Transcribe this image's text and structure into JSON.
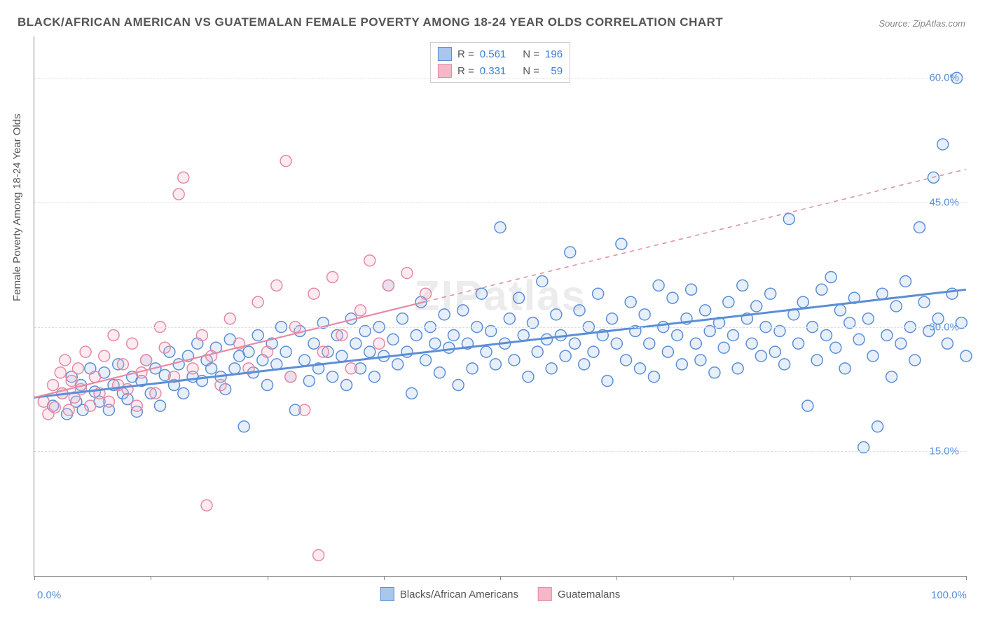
{
  "chart": {
    "title": "BLACK/AFRICAN AMERICAN VS GUATEMALAN FEMALE POVERTY AMONG 18-24 YEAR OLDS CORRELATION CHART",
    "source": "Source: ZipAtlas.com",
    "watermark": "ZIPatlas",
    "type": "scatter",
    "y_label": "Female Poverty Among 18-24 Year Olds",
    "xlim": [
      0,
      100
    ],
    "ylim": [
      0,
      65
    ],
    "y_gridlines": [
      15,
      30,
      45,
      60
    ],
    "y_tick_labels": [
      "15.0%",
      "30.0%",
      "45.0%",
      "60.0%"
    ],
    "x_ticks": [
      0,
      12.5,
      25,
      37.5,
      50,
      62.5,
      75,
      87.5,
      100
    ],
    "x_tick_labels": {
      "0": "0.0%",
      "100": "100.0%"
    },
    "background_color": "#ffffff",
    "grid_color": "#dddddd",
    "axis_color": "#888888",
    "tick_label_color": "#5b8fd6",
    "title_color": "#555555",
    "title_fontsize": 17,
    "label_fontsize": 15,
    "marker_radius": 8,
    "marker_stroke_width": 1.5,
    "marker_fill_opacity": 0.28,
    "series": [
      {
        "name": "Blacks/African Americans",
        "color_stroke": "#5b8fd6",
        "color_fill": "#a9c7ec",
        "R": "0.561",
        "N": "196",
        "trend": {
          "x1": 0,
          "y1": 21.5,
          "x2": 100,
          "y2": 34.5,
          "dash": false,
          "width": 3
        },
        "points": [
          [
            2,
            20.5
          ],
          [
            3,
            22
          ],
          [
            3.5,
            19.5
          ],
          [
            4,
            24
          ],
          [
            4.5,
            21
          ],
          [
            5,
            23
          ],
          [
            5.2,
            20
          ],
          [
            6,
            25
          ],
          [
            6.5,
            22.2
          ],
          [
            7,
            21
          ],
          [
            7.5,
            24.5
          ],
          [
            8,
            20
          ],
          [
            8.5,
            23
          ],
          [
            9,
            25.5
          ],
          [
            9.5,
            22
          ],
          [
            10,
            21.3
          ],
          [
            10.5,
            24
          ],
          [
            11,
            19.8
          ],
          [
            11.5,
            23.5
          ],
          [
            12,
            26
          ],
          [
            12.5,
            22
          ],
          [
            13,
            25
          ],
          [
            13.5,
            20.5
          ],
          [
            14,
            24.2
          ],
          [
            14.5,
            27
          ],
          [
            15,
            23
          ],
          [
            15.5,
            25.5
          ],
          [
            16,
            22
          ],
          [
            16.5,
            26.5
          ],
          [
            17,
            24
          ],
          [
            17.5,
            28
          ],
          [
            18,
            23.5
          ],
          [
            18.5,
            26
          ],
          [
            19,
            25
          ],
          [
            19.5,
            27.5
          ],
          [
            20,
            24
          ],
          [
            20.5,
            22.5
          ],
          [
            21,
            28.5
          ],
          [
            21.5,
            25
          ],
          [
            22,
            26.5
          ],
          [
            22.5,
            18
          ],
          [
            23,
            27
          ],
          [
            23.5,
            24.5
          ],
          [
            24,
            29
          ],
          [
            24.5,
            26
          ],
          [
            25,
            23
          ],
          [
            25.5,
            28
          ],
          [
            26,
            25.5
          ],
          [
            26.5,
            30
          ],
          [
            27,
            27
          ],
          [
            27.5,
            24
          ],
          [
            28,
            20
          ],
          [
            28.5,
            29.5
          ],
          [
            29,
            26
          ],
          [
            29.5,
            23.5
          ],
          [
            30,
            28
          ],
          [
            30.5,
            25
          ],
          [
            31,
            30.5
          ],
          [
            31.5,
            27
          ],
          [
            32,
            24
          ],
          [
            32.5,
            29
          ],
          [
            33,
            26.5
          ],
          [
            33.5,
            23
          ],
          [
            34,
            31
          ],
          [
            34.5,
            28
          ],
          [
            35,
            25
          ],
          [
            35.5,
            29.5
          ],
          [
            36,
            27
          ],
          [
            36.5,
            24
          ],
          [
            37,
            30
          ],
          [
            37.5,
            26.5
          ],
          [
            38,
            35
          ],
          [
            38.5,
            28.5
          ],
          [
            39,
            25.5
          ],
          [
            39.5,
            31
          ],
          [
            40,
            27
          ],
          [
            40.5,
            22
          ],
          [
            41,
            29
          ],
          [
            41.5,
            33
          ],
          [
            42,
            26
          ],
          [
            42.5,
            30
          ],
          [
            43,
            28
          ],
          [
            43.5,
            24.5
          ],
          [
            44,
            31.5
          ],
          [
            44.5,
            27.5
          ],
          [
            45,
            29
          ],
          [
            45.5,
            23
          ],
          [
            46,
            32
          ],
          [
            46.5,
            28
          ],
          [
            47,
            25
          ],
          [
            47.5,
            30
          ],
          [
            48,
            34
          ],
          [
            48.5,
            27
          ],
          [
            49,
            29.5
          ],
          [
            49.5,
            25.5
          ],
          [
            50,
            42
          ],
          [
            50.5,
            28
          ],
          [
            51,
            31
          ],
          [
            51.5,
            26
          ],
          [
            52,
            33.5
          ],
          [
            52.5,
            29
          ],
          [
            53,
            24
          ],
          [
            53.5,
            30.5
          ],
          [
            54,
            27
          ],
          [
            54.5,
            35.5
          ],
          [
            55,
            28.5
          ],
          [
            55.5,
            25
          ],
          [
            56,
            31.5
          ],
          [
            56.5,
            29
          ],
          [
            57,
            26.5
          ],
          [
            57.5,
            39
          ],
          [
            58,
            28
          ],
          [
            58.5,
            32
          ],
          [
            59,
            25.5
          ],
          [
            59.5,
            30
          ],
          [
            60,
            27
          ],
          [
            60.5,
            34
          ],
          [
            61,
            29
          ],
          [
            61.5,
            23.5
          ],
          [
            62,
            31
          ],
          [
            62.5,
            28
          ],
          [
            63,
            40
          ],
          [
            63.5,
            26
          ],
          [
            64,
            33
          ],
          [
            64.5,
            29.5
          ],
          [
            65,
            25
          ],
          [
            65.5,
            31.5
          ],
          [
            66,
            28
          ],
          [
            66.5,
            24
          ],
          [
            67,
            35
          ],
          [
            67.5,
            30
          ],
          [
            68,
            27
          ],
          [
            68.5,
            33.5
          ],
          [
            69,
            29
          ],
          [
            69.5,
            25.5
          ],
          [
            70,
            31
          ],
          [
            70.5,
            34.5
          ],
          [
            71,
            28
          ],
          [
            71.5,
            26
          ],
          [
            72,
            32
          ],
          [
            72.5,
            29.5
          ],
          [
            73,
            24.5
          ],
          [
            73.5,
            30.5
          ],
          [
            74,
            27.5
          ],
          [
            74.5,
            33
          ],
          [
            75,
            29
          ],
          [
            75.5,
            25
          ],
          [
            76,
            35
          ],
          [
            76.5,
            31
          ],
          [
            77,
            28
          ],
          [
            77.5,
            32.5
          ],
          [
            78,
            26.5
          ],
          [
            78.5,
            30
          ],
          [
            79,
            34
          ],
          [
            79.5,
            27
          ],
          [
            80,
            29.5
          ],
          [
            80.5,
            25.5
          ],
          [
            81,
            43
          ],
          [
            81.5,
            31.5
          ],
          [
            82,
            28
          ],
          [
            82.5,
            33
          ],
          [
            83,
            20.5
          ],
          [
            83.5,
            30
          ],
          [
            84,
            26
          ],
          [
            84.5,
            34.5
          ],
          [
            85,
            29
          ],
          [
            85.5,
            36
          ],
          [
            86,
            27.5
          ],
          [
            86.5,
            32
          ],
          [
            87,
            25
          ],
          [
            87.5,
            30.5
          ],
          [
            88,
            33.5
          ],
          [
            88.5,
            28.5
          ],
          [
            89,
            15.5
          ],
          [
            89.5,
            31
          ],
          [
            90,
            26.5
          ],
          [
            90.5,
            18
          ],
          [
            91,
            34
          ],
          [
            91.5,
            29
          ],
          [
            92,
            24
          ],
          [
            92.5,
            32.5
          ],
          [
            93,
            28
          ],
          [
            93.5,
            35.5
          ],
          [
            94,
            30
          ],
          [
            94.5,
            26
          ],
          [
            95,
            42
          ],
          [
            95.5,
            33
          ],
          [
            96,
            29.5
          ],
          [
            96.5,
            48
          ],
          [
            97,
            31
          ],
          [
            97.5,
            52
          ],
          [
            98,
            28
          ],
          [
            98.5,
            34
          ],
          [
            99,
            60
          ],
          [
            99.5,
            30.5
          ],
          [
            100,
            26.5
          ]
        ]
      },
      {
        "name": "Guatemalans",
        "color_stroke": "#e68aa3",
        "color_fill": "#f5b8c8",
        "R": "0.331",
        "N": "59",
        "trend": {
          "x1": 0,
          "y1": 21.5,
          "x2": 100,
          "y2": 49,
          "dash_from": 42,
          "width": 2.2
        },
        "points": [
          [
            1,
            21
          ],
          [
            1.5,
            19.5
          ],
          [
            2,
            23
          ],
          [
            2.2,
            20.3
          ],
          [
            2.8,
            24.5
          ],
          [
            3,
            22
          ],
          [
            3.3,
            26
          ],
          [
            3.7,
            20
          ],
          [
            4,
            23.5
          ],
          [
            4.3,
            21.5
          ],
          [
            4.7,
            25
          ],
          [
            5,
            22.5
          ],
          [
            5.5,
            27
          ],
          [
            6,
            20.5
          ],
          [
            6.5,
            24
          ],
          [
            7,
            22
          ],
          [
            7.5,
            26.5
          ],
          [
            8,
            21
          ],
          [
            8.5,
            29
          ],
          [
            9,
            23
          ],
          [
            9.5,
            25.5
          ],
          [
            10,
            22.5
          ],
          [
            10.5,
            28
          ],
          [
            11,
            20.5
          ],
          [
            11.5,
            24.5
          ],
          [
            12,
            26
          ],
          [
            13,
            22
          ],
          [
            13.5,
            30
          ],
          [
            14,
            27.5
          ],
          [
            15,
            24
          ],
          [
            15.5,
            46
          ],
          [
            16,
            48
          ],
          [
            17,
            25
          ],
          [
            18,
            29
          ],
          [
            18.5,
            8.5
          ],
          [
            19,
            26.5
          ],
          [
            20,
            23
          ],
          [
            21,
            31
          ],
          [
            22,
            28
          ],
          [
            23,
            25
          ],
          [
            24,
            33
          ],
          [
            25,
            27
          ],
          [
            26,
            35
          ],
          [
            27,
            50
          ],
          [
            27.5,
            24
          ],
          [
            28,
            30
          ],
          [
            29,
            20
          ],
          [
            30,
            34
          ],
          [
            30.5,
            2.5
          ],
          [
            31,
            27
          ],
          [
            32,
            36
          ],
          [
            33,
            29
          ],
          [
            34,
            25
          ],
          [
            35,
            32
          ],
          [
            36,
            38
          ],
          [
            37,
            28
          ],
          [
            38,
            35
          ],
          [
            40,
            36.5
          ],
          [
            42,
            34
          ]
        ]
      }
    ],
    "legend_top": {
      "rows": [
        {
          "swatch_fill": "#a9c7ec",
          "swatch_stroke": "#5b8fd6",
          "R_label": "R =",
          "R": "0.561",
          "N_label": "N =",
          "N": "196"
        },
        {
          "swatch_fill": "#f5b8c8",
          "swatch_stroke": "#e68aa3",
          "R_label": "R =",
          "R": "0.331",
          "N_label": "N =",
          "N": "  59"
        }
      ]
    },
    "legend_bottom": [
      {
        "swatch_fill": "#a9c7ec",
        "swatch_stroke": "#5b8fd6",
        "label": "Blacks/African Americans"
      },
      {
        "swatch_fill": "#f5b8c8",
        "swatch_stroke": "#e68aa3",
        "label": "Guatemalans"
      }
    ]
  }
}
